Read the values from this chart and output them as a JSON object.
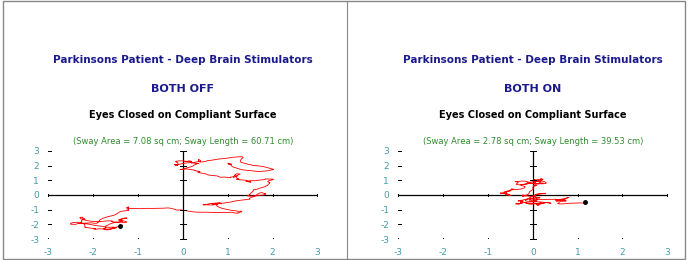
{
  "title_line1": "Parkinsons Patient - Deep Brain Stimulators",
  "title_off": "BOTH OFF",
  "title_on": "BOTH ON",
  "subtitle": "Eyes Closed on Compliant Surface",
  "stats_off": "(Sway Area = 7.08 sq cm; Sway Length = 60.71 cm)",
  "stats_on": "(Sway Area = 2.78 sq cm; Sway Length = 39.53 cm)",
  "title_color": "#1a1a8c",
  "subtitle_color": "#000000",
  "stats_color": "#2e8b2e",
  "line_color": "#FF0000",
  "axis_range": [
    -3,
    3
  ],
  "tick_values": [
    -3,
    -2,
    -1,
    0,
    1,
    2,
    3
  ],
  "background_color": "#FFFFFF",
  "border_color": "#888888",
  "tick_color": "#4499AA",
  "seed_off": 42,
  "seed_on": 77,
  "n_steps_off": 1500,
  "n_steps_on": 900
}
